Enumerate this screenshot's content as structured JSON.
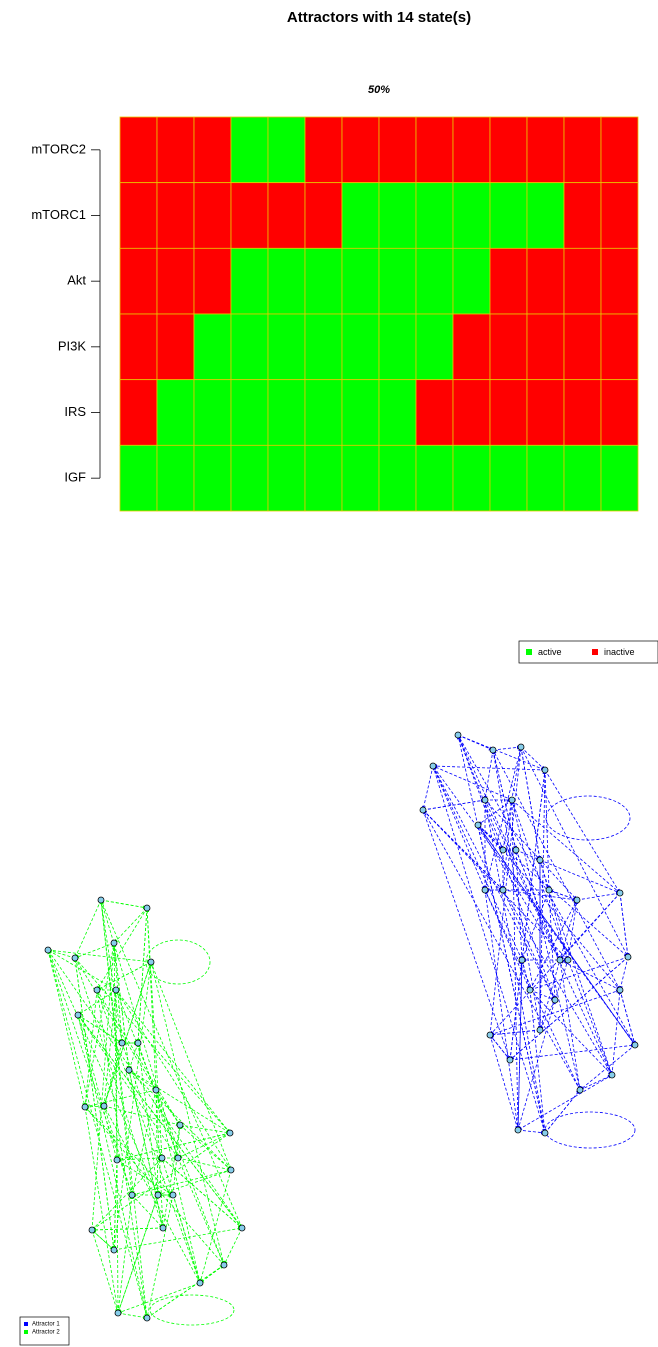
{
  "chart_data": [
    {
      "type": "heatmap",
      "title": "Attractors with 14 state(s)",
      "subtitle": "50%",
      "rows": [
        "mTORC2",
        "mTORC1",
        "Akt",
        "PI3K",
        "IRS",
        "IGF"
      ],
      "values": [
        [
          0,
          0,
          0,
          1,
          1,
          0,
          0,
          0,
          0,
          0,
          0,
          0,
          0,
          0
        ],
        [
          0,
          0,
          0,
          0,
          0,
          0,
          1,
          1,
          1,
          1,
          1,
          1,
          0,
          0
        ],
        [
          0,
          0,
          0,
          1,
          1,
          1,
          1,
          1,
          1,
          1,
          0,
          0,
          0,
          0
        ],
        [
          0,
          0,
          1,
          1,
          1,
          1,
          1,
          1,
          1,
          0,
          0,
          0,
          0,
          0
        ],
        [
          0,
          1,
          1,
          1,
          1,
          1,
          1,
          1,
          0,
          0,
          0,
          0,
          0,
          0
        ],
        [
          1,
          1,
          1,
          1,
          1,
          1,
          1,
          1,
          1,
          1,
          1,
          1,
          1,
          1
        ]
      ],
      "states": [
        {
          "name": "active",
          "value": 1,
          "color": "#00ff00"
        },
        {
          "name": "inactive",
          "value": 0,
          "color": "#ff0000"
        }
      ]
    },
    {
      "type": "network",
      "series": [
        {
          "name": "Attractor 1",
          "color": "#0000ff"
        },
        {
          "name": "Attractor 2",
          "color": "#00ff00"
        }
      ]
    }
  ]
}
